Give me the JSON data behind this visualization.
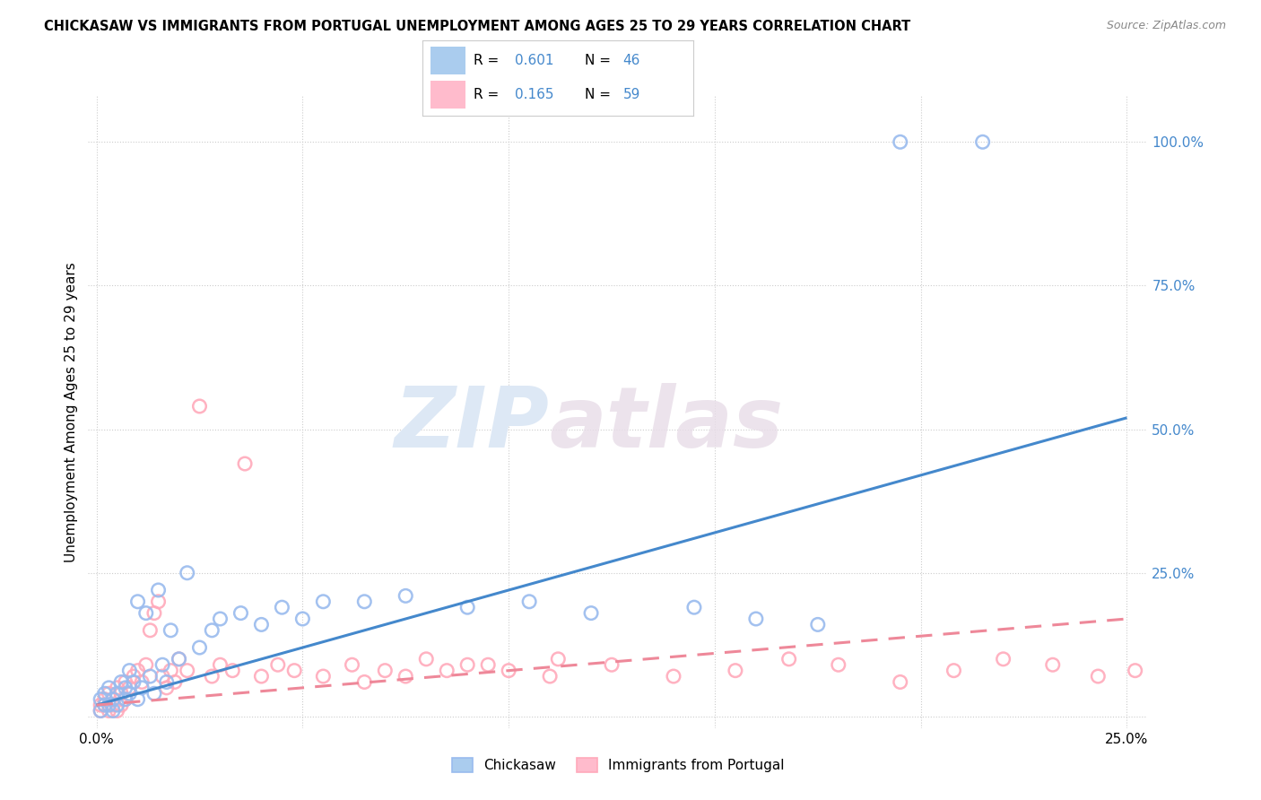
{
  "title": "CHICKASAW VS IMMIGRANTS FROM PORTUGAL UNEMPLOYMENT AMONG AGES 25 TO 29 YEARS CORRELATION CHART",
  "source": "Source: ZipAtlas.com",
  "ylabel": "Unemployment Among Ages 25 to 29 years",
  "watermark_zip": "ZIP",
  "watermark_atlas": "atlas",
  "chickasaw_R": 0.601,
  "chickasaw_N": 46,
  "portugal_R": 0.165,
  "portugal_N": 59,
  "x_ticks": [
    0.0,
    0.05,
    0.1,
    0.15,
    0.2,
    0.25
  ],
  "y_ticks": [
    0.0,
    0.25,
    0.5,
    0.75,
    1.0
  ],
  "xlim": [
    -0.002,
    0.255
  ],
  "ylim": [
    -0.02,
    1.08
  ],
  "grid_color": "#cccccc",
  "background_color": "#ffffff",
  "blue_scatter_color": "#99bbee",
  "pink_scatter_color": "#ffaabb",
  "blue_line_color": "#4488cc",
  "pink_line_color": "#ee8899",
  "right_tick_color": "#4488cc",
  "legend_blue_fill": "#aaccee",
  "legend_pink_fill": "#ffbbcc",
  "blue_line_x": [
    0.0,
    0.25
  ],
  "blue_line_y": [
    0.02,
    0.52
  ],
  "pink_line_x": [
    0.0,
    0.25
  ],
  "pink_line_y": [
    0.02,
    0.17
  ],
  "chickasaw_x": [
    0.001,
    0.001,
    0.002,
    0.002,
    0.003,
    0.003,
    0.004,
    0.004,
    0.005,
    0.005,
    0.006,
    0.007,
    0.007,
    0.008,
    0.008,
    0.009,
    0.01,
    0.01,
    0.011,
    0.012,
    0.013,
    0.014,
    0.015,
    0.016,
    0.017,
    0.018,
    0.02,
    0.022,
    0.025,
    0.028,
    0.03,
    0.035,
    0.04,
    0.045,
    0.05,
    0.055,
    0.065,
    0.075,
    0.09,
    0.105,
    0.12,
    0.145,
    0.16,
    0.175,
    0.195,
    0.215
  ],
  "chickasaw_y": [
    0.03,
    0.01,
    0.04,
    0.02,
    0.05,
    0.02,
    0.03,
    0.01,
    0.04,
    0.02,
    0.06,
    0.03,
    0.05,
    0.08,
    0.04,
    0.06,
    0.2,
    0.03,
    0.05,
    0.18,
    0.07,
    0.04,
    0.22,
    0.09,
    0.06,
    0.15,
    0.1,
    0.25,
    0.12,
    0.15,
    0.17,
    0.18,
    0.16,
    0.19,
    0.17,
    0.2,
    0.2,
    0.21,
    0.19,
    0.2,
    0.18,
    0.19,
    0.17,
    0.16,
    1.0,
    1.0
  ],
  "portugal_x": [
    0.001,
    0.001,
    0.002,
    0.002,
    0.003,
    0.003,
    0.004,
    0.004,
    0.005,
    0.005,
    0.006,
    0.006,
    0.007,
    0.007,
    0.008,
    0.009,
    0.01,
    0.011,
    0.012,
    0.013,
    0.014,
    0.015,
    0.016,
    0.017,
    0.018,
    0.019,
    0.02,
    0.022,
    0.025,
    0.028,
    0.03,
    0.033,
    0.036,
    0.04,
    0.044,
    0.048,
    0.055,
    0.062,
    0.07,
    0.08,
    0.09,
    0.1,
    0.112,
    0.125,
    0.14,
    0.155,
    0.168,
    0.18,
    0.195,
    0.208,
    0.22,
    0.232,
    0.243,
    0.252,
    0.065,
    0.075,
    0.085,
    0.095,
    0.11
  ],
  "portugal_y": [
    0.02,
    0.01,
    0.03,
    0.02,
    0.04,
    0.01,
    0.03,
    0.02,
    0.05,
    0.01,
    0.04,
    0.02,
    0.06,
    0.03,
    0.05,
    0.07,
    0.08,
    0.06,
    0.09,
    0.15,
    0.18,
    0.2,
    0.07,
    0.05,
    0.08,
    0.06,
    0.1,
    0.08,
    0.54,
    0.07,
    0.09,
    0.08,
    0.44,
    0.07,
    0.09,
    0.08,
    0.07,
    0.09,
    0.08,
    0.1,
    0.09,
    0.08,
    0.1,
    0.09,
    0.07,
    0.08,
    0.1,
    0.09,
    0.06,
    0.08,
    0.1,
    0.09,
    0.07,
    0.08,
    0.06,
    0.07,
    0.08,
    0.09,
    0.07
  ]
}
